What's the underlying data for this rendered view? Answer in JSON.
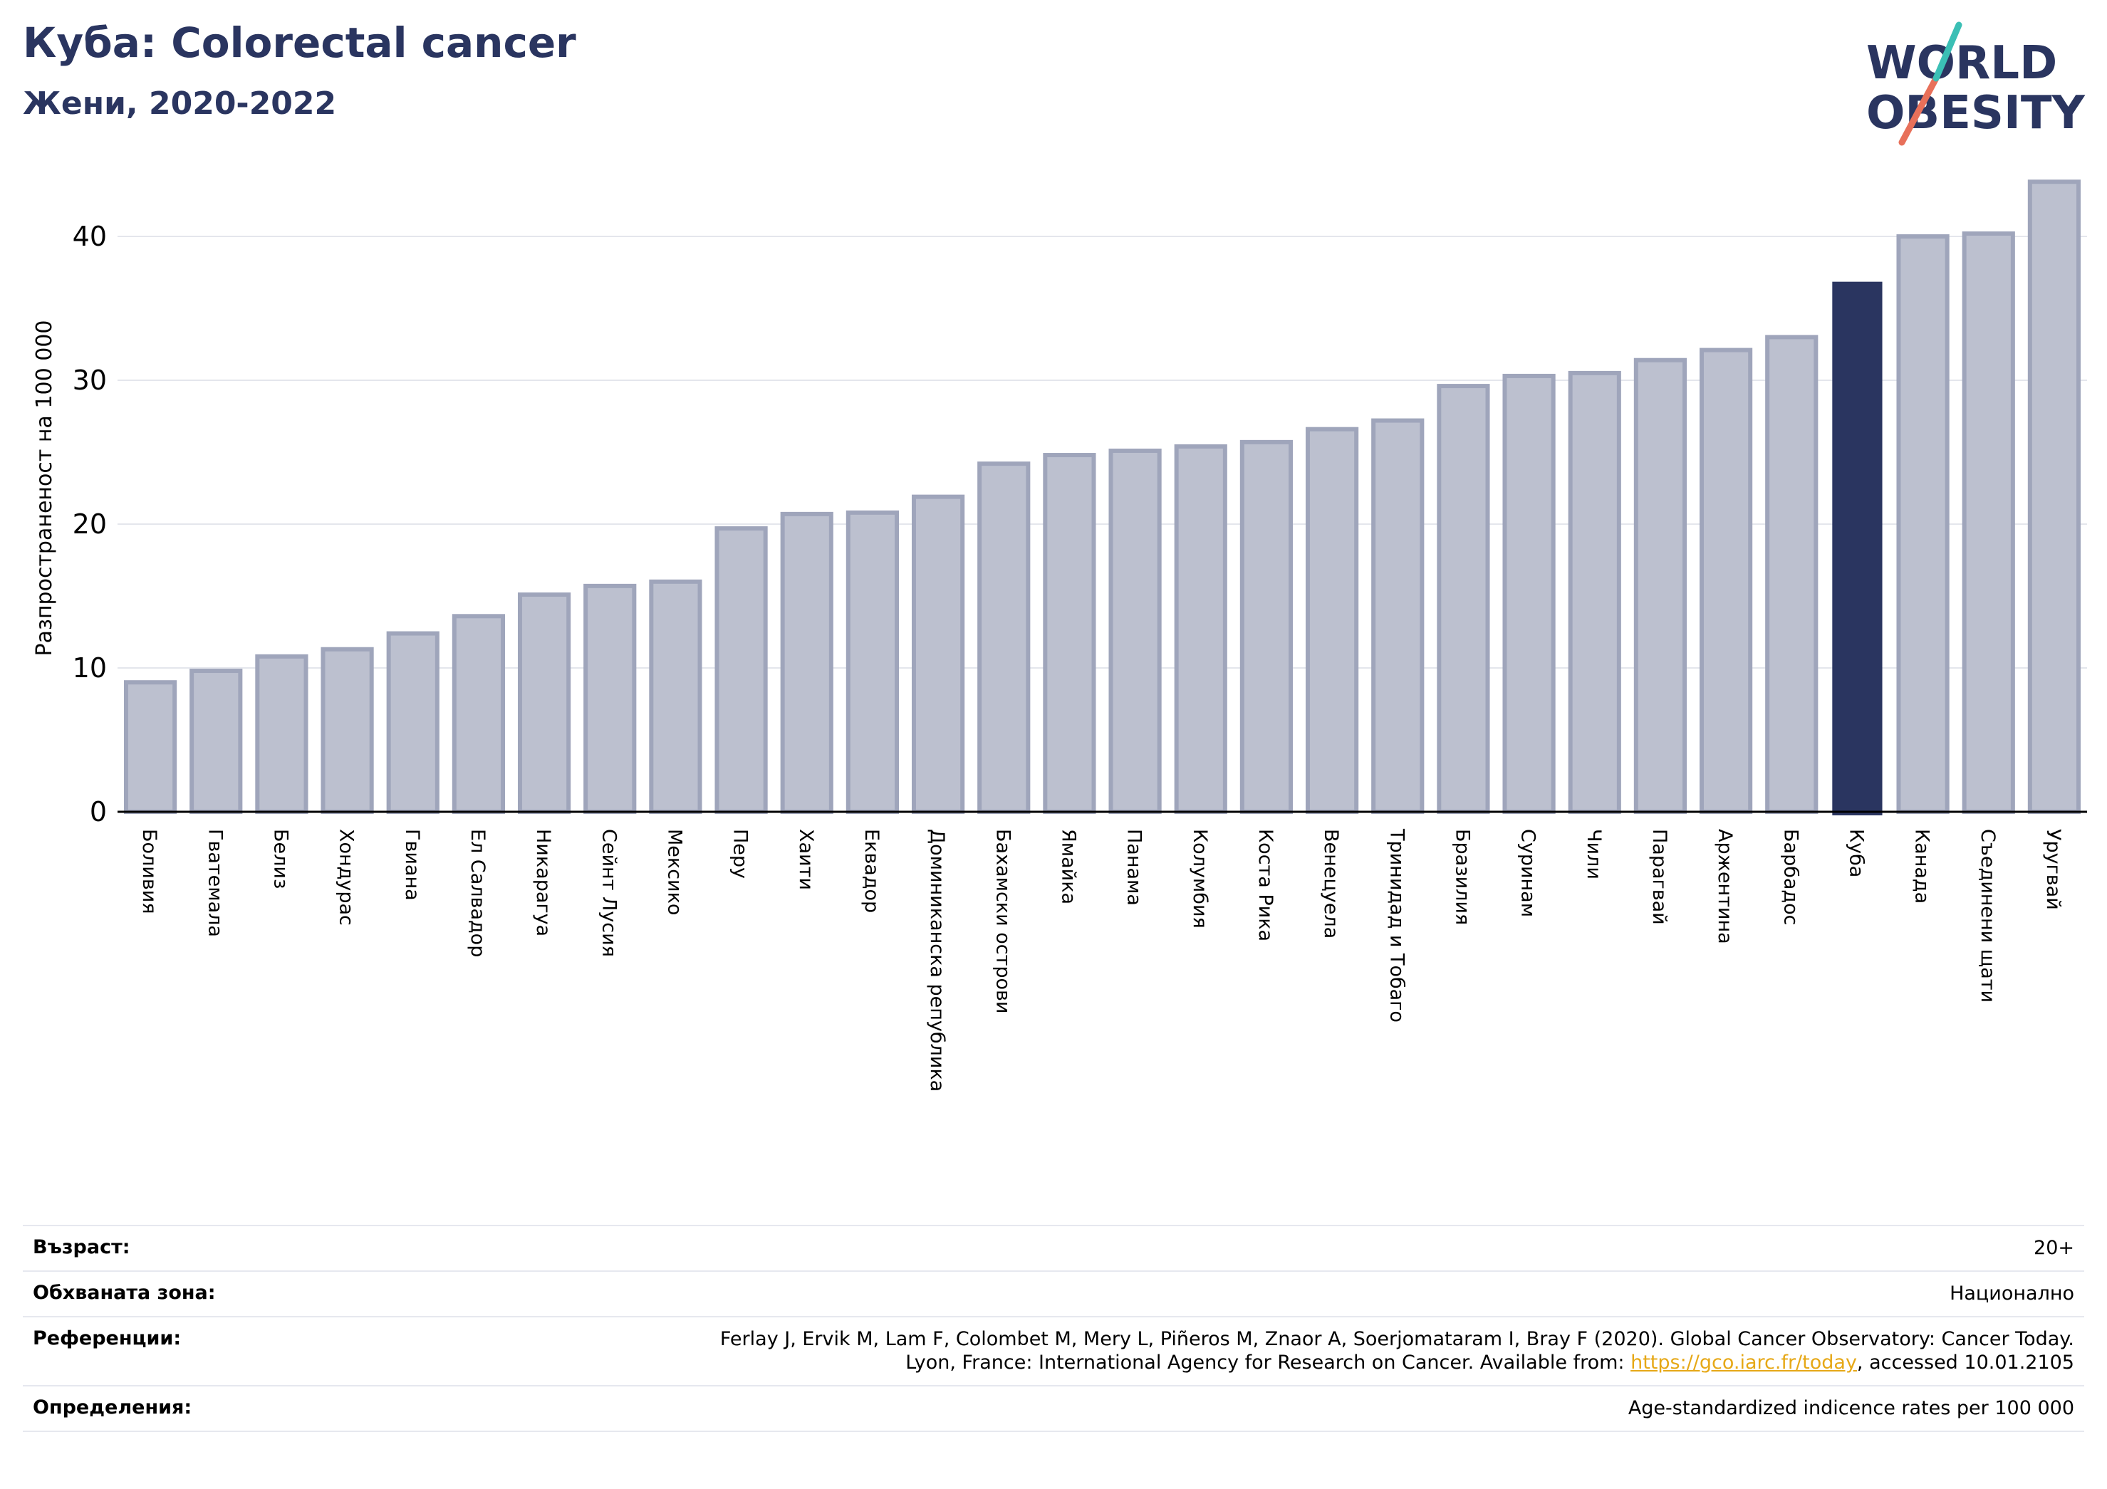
{
  "title": "Куба: Colorectal cancer",
  "subtitle": "Жени, 2020-2022",
  "logo": {
    "line1": "WORLD",
    "line2": "OBESITY"
  },
  "colors": {
    "bar": "#bcc0cf",
    "bar_border": "#9fa5bb",
    "highlight": "#2a3560",
    "grid": "#e4e6ec",
    "title": "#2a3560",
    "link": "#e6a817"
  },
  "chart_data": {
    "type": "bar",
    "ylabel": "Разпространеност  на 100 000",
    "xlabel": "",
    "ylim": [
      0,
      45
    ],
    "yticks": [
      0,
      10,
      20,
      30,
      40
    ],
    "grid": true,
    "highlight": "Куба",
    "categories": [
      "Боливия",
      "Гватемала",
      "Белиз",
      "Хондурас",
      "Гвиана",
      "Ел Салвадор",
      "Никарагуа",
      "Сейнт Лусия",
      "Мексико",
      "Перу",
      "Хаити",
      "Еквадор",
      "Доминиканска република",
      "Бахамски острови",
      "Ямайка",
      "Панама",
      "Колумбия",
      "Коста Рика",
      "Венецуела",
      "Тринидад и Тобаго",
      "Бразилия",
      "Суринам",
      "Чили",
      "Парагвай",
      "Аржентина",
      "Барбадос",
      "Куба",
      "Канада",
      "Съединени щати",
      "Уругвай"
    ],
    "values": [
      9.0,
      9.8,
      10.8,
      11.3,
      12.4,
      13.6,
      15.1,
      15.7,
      16.0,
      19.7,
      20.7,
      20.8,
      21.9,
      24.2,
      24.8,
      25.1,
      25.4,
      25.7,
      26.6,
      27.2,
      29.6,
      30.3,
      30.5,
      31.4,
      32.1,
      33.0,
      36.8,
      40.0,
      40.2,
      43.8
    ]
  },
  "info": [
    {
      "label": "Възраст:",
      "value": "20+"
    },
    {
      "label": "Обхваната зона:",
      "value": "Национално"
    },
    {
      "label": "Референции:",
      "value_line1": "Ferlay J, Ervik M, Lam F, Colombet M, Mery L, Piñeros M, Znaor A, Soerjomataram I, Bray F (2020). Global Cancer Observatory: Cancer Today.",
      "value_line2_pre": "Lyon, France: International Agency for Research on Cancer. Available from: ",
      "link": "https://gco.iarc.fr/today",
      "value_line2_post": ", accessed 10.01.2105"
    },
    {
      "label": "Определения:",
      "value": "Age-standardized indicence rates per 100 000"
    }
  ]
}
